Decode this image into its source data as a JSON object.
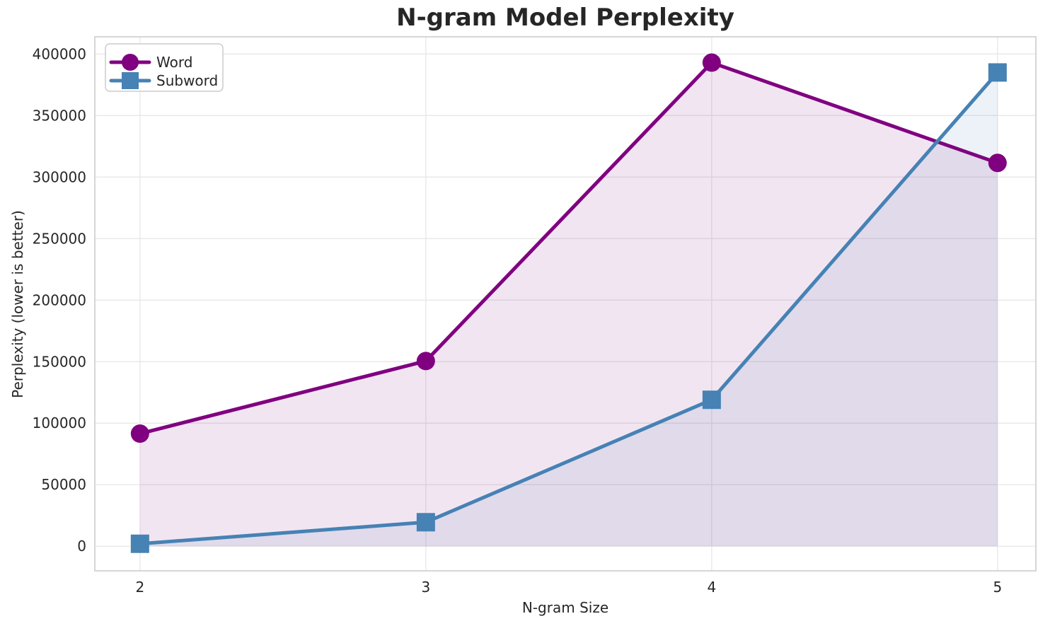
{
  "chart_data": {
    "type": "line",
    "title": "N-gram Model Perplexity",
    "xlabel": "N-gram Size",
    "ylabel": "Perplexity (lower is better)",
    "x": [
      2,
      3,
      4,
      5
    ],
    "series": [
      {
        "name": "Word",
        "marker": "circle",
        "color": "#800080",
        "values": [
          91500,
          150500,
          393000,
          311500
        ]
      },
      {
        "name": "Subword",
        "marker": "square",
        "color": "#4682B4",
        "values": [
          2000,
          19500,
          119000,
          385000
        ]
      }
    ],
    "xticks": [
      2,
      3,
      4,
      5
    ],
    "yticks": [
      0,
      50000,
      100000,
      150000,
      200000,
      250000,
      300000,
      350000,
      400000
    ],
    "xlim": [
      1.842,
      5.134
    ],
    "ylim": [
      -20000,
      414000
    ],
    "grid": true,
    "legend_position": "upper left",
    "fill_alpha": 0.1,
    "fill_baseline": 0,
    "colors": {
      "background": "#ffffff",
      "grid": "#e8e8e8",
      "spine": "#c9c9c9",
      "text": "#262626",
      "legend_border": "#cccccc",
      "legend_background": "#ffffff"
    }
  }
}
